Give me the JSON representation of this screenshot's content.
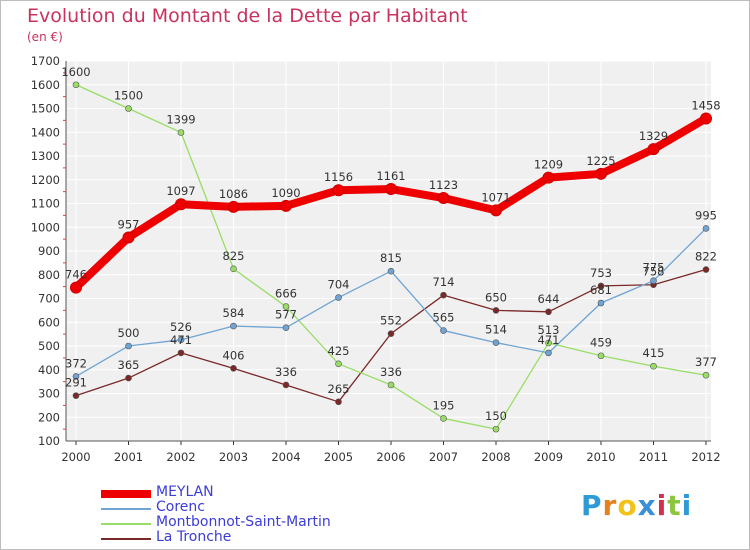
{
  "title": "Evolution du Montant de la Dette par Habitant",
  "unit": "(en €)",
  "logo": {
    "letters": [
      "P",
      "r",
      "o",
      "x",
      "i",
      "t",
      "i"
    ],
    "colors": [
      "#2e9ad6",
      "#e8801c",
      "#f2c21a",
      "#3a8fd8",
      "#d32f4f",
      "#8cc63f",
      "#2e9ad6"
    ]
  },
  "chart_data": {
    "type": "line",
    "categories": [
      "2000",
      "2001",
      "2002",
      "2003",
      "2004",
      "2005",
      "2006",
      "2007",
      "2008",
      "2009",
      "2010",
      "2011",
      "2012"
    ],
    "ylim": [
      100,
      1700
    ],
    "yticks": [
      100,
      200,
      300,
      400,
      500,
      600,
      700,
      800,
      900,
      1000,
      1100,
      1200,
      1300,
      1400,
      1500,
      1600,
      1700
    ],
    "grid": true,
    "legend": "bottom-left",
    "series": [
      {
        "name": "MEYLAN",
        "color": "#ee0000",
        "values": [
          746,
          957,
          1097,
          1086,
          1090,
          1156,
          1161,
          1123,
          1071,
          1209,
          1225,
          1329,
          1458
        ]
      },
      {
        "name": "Corenc",
        "color": "#6fa4d4",
        "values": [
          372,
          500,
          526,
          584,
          577,
          704,
          815,
          565,
          514,
          471,
          681,
          775,
          995
        ]
      },
      {
        "name": "Montbonnot-Saint-Martin",
        "color": "#99dd66",
        "values": [
          1600,
          1500,
          1399,
          825,
          666,
          425,
          336,
          195,
          150,
          513,
          459,
          415,
          377
        ]
      },
      {
        "name": "La Tronche",
        "color": "#7a2828",
        "values": [
          291,
          365,
          471,
          406,
          336,
          265,
          552,
          714,
          650,
          644,
          753,
          758,
          822
        ]
      }
    ]
  }
}
